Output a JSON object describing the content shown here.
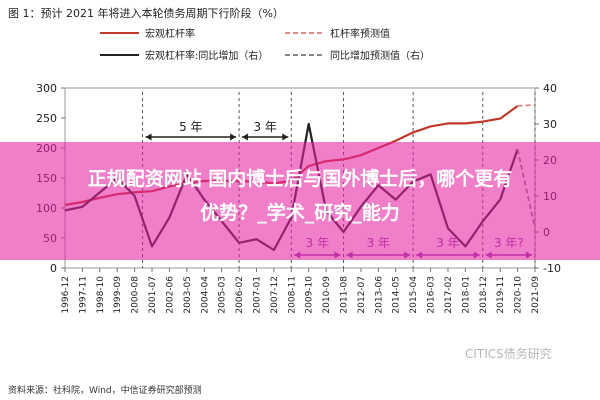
{
  "figure_title": "图 1：预计 2021 年将进入本轮债务周期下行阶段（%）",
  "source": "资料来源：社科院，Wind，中信证券研究部预测",
  "watermark": "CITICS债务研究",
  "overlay": {
    "line1": "正规配资网站 国内博士后与国外博士后，哪个更有",
    "line2": "优势？_学术_研究_能力"
  },
  "chart_data": {
    "type": "line",
    "title": "",
    "xlabel": "",
    "ylabel": "",
    "ylim_left": [
      0,
      300
    ],
    "ylim_right": [
      -10,
      40
    ],
    "left_ticks": [
      "0",
      "50",
      "100",
      "150",
      "200",
      "250",
      "300"
    ],
    "right_ticks": [
      "-10",
      "0",
      "10",
      "20",
      "30",
      "40"
    ],
    "x_ticks": [
      "1996-12",
      "1997-11",
      "1998-10",
      "1999-09",
      "2000-08",
      "2001-07",
      "2002-06",
      "2003-05",
      "2004-04",
      "2005-03",
      "2006-02",
      "2007-01",
      "2007-12",
      "2008-11",
      "2009-10",
      "2010-09",
      "2011-08",
      "2012-07",
      "2013-06",
      "2014-05",
      "2015-04",
      "2016-03",
      "2017-02",
      "2018-01",
      "2018-12",
      "2019-11",
      "2020-10",
      "2021-09"
    ],
    "legend": {
      "position": "top",
      "items": [
        {
          "label": "宏观杠杆率",
          "color": "#c0392b",
          "style": "solid"
        },
        {
          "label": "杠杆率预测值",
          "color": "#d98c8c",
          "style": "dashed"
        },
        {
          "label": "宏观杠杆率:同比增加（右）",
          "color": "#222222",
          "style": "solid"
        },
        {
          "label": "同比增加预测值（右）",
          "color": "#888888",
          "style": "dashed"
        }
      ]
    },
    "grid": false,
    "series": [
      {
        "name": "宏观杠杆率",
        "axis": "left",
        "color": "#c0392b",
        "style": "solid",
        "x": [
          "1996-12",
          "1997-11",
          "1998-10",
          "1999-09",
          "2000-08",
          "2001-07",
          "2002-06",
          "2003-05",
          "2004-04",
          "2005-03",
          "2006-02",
          "2007-01",
          "2007-12",
          "2008-11",
          "2009-10",
          "2010-09",
          "2011-08",
          "2012-07",
          "2013-06",
          "2014-05",
          "2015-04",
          "2016-03",
          "2017-02",
          "2018-01",
          "2018-12",
          "2019-11",
          "2020-10"
        ],
        "values": [
          105,
          110,
          117,
          123,
          126,
          128,
          136,
          142,
          145,
          145,
          145,
          144,
          141,
          145,
          170,
          178,
          181,
          188,
          200,
          212,
          226,
          236,
          241,
          241,
          244,
          249,
          270
        ]
      },
      {
        "name": "杠杆率预测值",
        "axis": "left",
        "color": "#d98c8c",
        "style": "dashed",
        "x": [
          "2020-10",
          "2021-09"
        ],
        "values": [
          270,
          272
        ]
      },
      {
        "name": "宏观杠杆率:同比增加（右）",
        "axis": "right",
        "color": "#222222",
        "style": "solid",
        "x": [
          "1996-12",
          "1997-11",
          "1998-10",
          "1999-09",
          "2000-08",
          "2001-07",
          "2002-06",
          "2003-05",
          "2004-04",
          "2005-03",
          "2006-02",
          "2007-01",
          "2007-12",
          "2008-11",
          "2009-10",
          "2010-09",
          "2011-08",
          "2012-07",
          "2013-06",
          "2014-05",
          "2015-04",
          "2016-03",
          "2017-02",
          "2018-01",
          "2018-12",
          "2019-11",
          "2020-10"
        ],
        "values": [
          6,
          7,
          11,
          15,
          10,
          -4,
          4,
          16,
          9,
          3,
          -3,
          -2,
          -5,
          4,
          30,
          6,
          0,
          7,
          13,
          9,
          14,
          16,
          1,
          -4,
          3,
          9,
          23
        ]
      },
      {
        "name": "同比增加预测值（右）",
        "axis": "right",
        "color": "#888888",
        "style": "dashed",
        "x": [
          "2020-10",
          "2021-09"
        ],
        "values": [
          23,
          1
        ]
      }
    ],
    "annotations": [
      {
        "label": "5 年",
        "from": "2001-01",
        "to": "2006-02",
        "color": "#222222",
        "row": "top"
      },
      {
        "label": "3 年",
        "from": "2006-02",
        "to": "2008-11",
        "color": "#222222",
        "row": "top"
      },
      {
        "label": "3 年",
        "from": "2008-11",
        "to": "2011-08",
        "color": "#8e44ad",
        "row": "bottom"
      },
      {
        "label": "3 年",
        "from": "2011-08",
        "to": "2015-04",
        "color": "#8e44ad",
        "row": "bottom"
      },
      {
        "label": "3 年",
        "from": "2015-04",
        "to": "2018-12",
        "color": "#8e44ad",
        "row": "bottom"
      },
      {
        "label": "3 年?",
        "from": "2018-12",
        "to": "2021-09",
        "color": "#8e44ad",
        "row": "bottom"
      }
    ],
    "vertical_markers": [
      "2001-01",
      "2006-02",
      "2008-11",
      "2011-08",
      "2015-04",
      "2018-12",
      "2021-09"
    ]
  }
}
